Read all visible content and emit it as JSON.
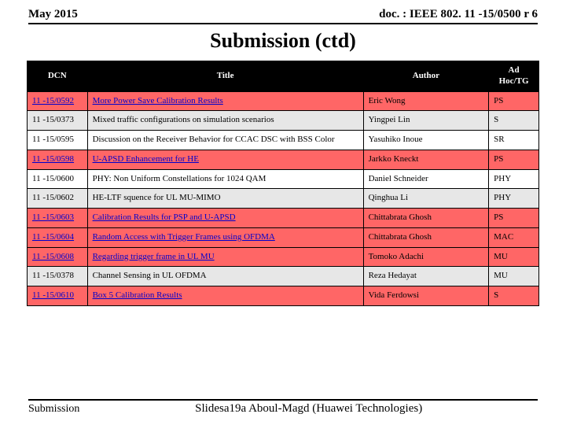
{
  "header": {
    "left": "May 2015",
    "right": "doc. : IEEE 802. 11 -15/0500 r 6"
  },
  "title": "Submission (ctd)",
  "columns": {
    "dcn": "DCN",
    "title": "Title",
    "author": "Author",
    "tg": "Ad Hoc/TG"
  },
  "rows": [
    {
      "dcn": "11 -15/0592",
      "title": "More Power Save Calibration Results",
      "author": "Eric Wong",
      "tg": "PS",
      "highlight": true,
      "link": true
    },
    {
      "dcn": "11 -15/0373",
      "title": "Mixed traffic configurations on simulation scenarios",
      "author": "Yingpei Lin",
      "tg": "S",
      "highlight": false,
      "link": false
    },
    {
      "dcn": "11 -15/0595",
      "title": "Discussion on the Receiver Behavior for CCAC DSC with BSS Color",
      "author": "Yasuhiko Inoue",
      "tg": "SR",
      "highlight": false,
      "link": false
    },
    {
      "dcn": "11 -15/0598",
      "title": "U-APSD Enhancement for HE",
      "author": "Jarkko Kneckt",
      "tg": "PS",
      "highlight": true,
      "link": true
    },
    {
      "dcn": "11 -15/0600",
      "title": "PHY: Non Uniform Constellations for 1024 QAM",
      "author": "Daniel Schneider",
      "tg": "PHY",
      "highlight": false,
      "link": false
    },
    {
      "dcn": "11 -15/0602",
      "title": "HE-LTF squence for UL MU-MIMO",
      "author": "Qinghua Li",
      "tg": "PHY",
      "highlight": false,
      "link": false
    },
    {
      "dcn": "11 -15/0603",
      "title": "Calibration Results for PSP and U-APSD",
      "author": "Chittabrata Ghosh",
      "tg": "PS",
      "highlight": true,
      "link": true
    },
    {
      "dcn": "11 -15/0604",
      "title": "Random Access with Trigger Frames using OFDMA",
      "author": "Chittabrata Ghosh",
      "tg": "MAC",
      "highlight": true,
      "link": true
    },
    {
      "dcn": "11 -15/0608",
      "title": "Regarding trigger frame in UL MU",
      "author": "Tomoko Adachi",
      "tg": "MU",
      "highlight": true,
      "link": true
    },
    {
      "dcn": "11 -15/0378",
      "title": "Channel Sensing in UL OFDMA",
      "author": "Reza Hedayat",
      "tg": "MU",
      "highlight": false,
      "link": false
    },
    {
      "dcn": "11 -15/0610",
      "title": "Box 5 Calibration Results",
      "author": "Vida Ferdowsi",
      "tg": "S",
      "highlight": true,
      "link": true
    }
  ],
  "footer": {
    "left": "Submission",
    "center": "Slidesa19a Aboul-Magd (Huawei Technologies)"
  },
  "styles": {
    "highlight_bg": "#ff6666",
    "alt_bg": "#e7e7e7",
    "link_color": "#0000cc"
  }
}
